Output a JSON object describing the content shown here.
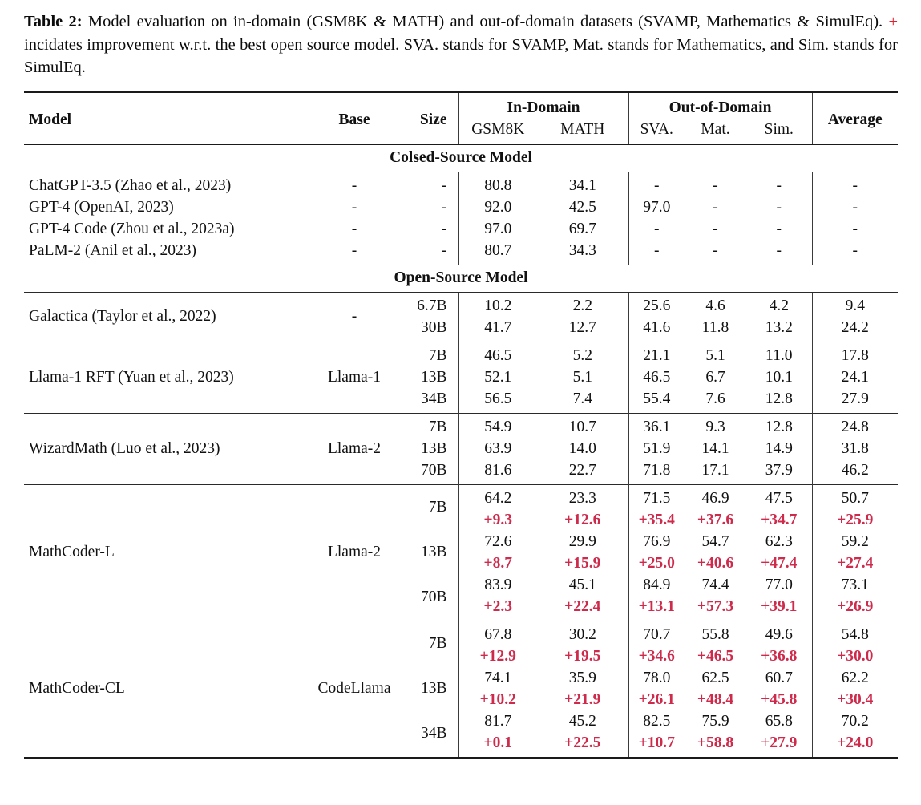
{
  "caption": {
    "label": "Table 2:",
    "text_before_plus": "Model evaluation on in-domain (GSM8K & MATH) and out-of-domain datasets (SVAMP, Mathematics & SimulEq).",
    "plus_sign": "+",
    "text_after_plus": "incidates improvement w.r.t. the best open source model. SVA. stands for SVAMP, Mat. stands for Mathematics, and Sim. stands for SimulEq."
  },
  "colors": {
    "improvement_red": "#ce2a4c",
    "caption_plus_red": "#e0202e",
    "rule_black": "#1a1a1a"
  },
  "header": {
    "model": "Model",
    "base": "Base",
    "size": "Size",
    "in_domain": "In-Domain",
    "out_of_domain": "Out-of-Domain",
    "average": "Average",
    "gsm8k": "GSM8K",
    "math": "MATH",
    "sva": "SVA.",
    "mat": "Mat.",
    "sim": "Sim."
  },
  "sections": {
    "closed": "Colsed-Source Model",
    "open": "Open-Source Model"
  },
  "closed_rows": [
    {
      "model": "ChatGPT-3.5 (Zhao et al., 2023)",
      "base": "-",
      "size": "-",
      "gsm8k": "80.8",
      "math": "34.1",
      "sva": "-",
      "mat": "-",
      "sim": "-",
      "avg": "-"
    },
    {
      "model": "GPT-4 (OpenAI, 2023)",
      "base": "-",
      "size": "-",
      "gsm8k": "92.0",
      "math": "42.5",
      "sva": "97.0",
      "mat": "-",
      "sim": "-",
      "avg": "-"
    },
    {
      "model": "GPT-4 Code (Zhou et al., 2023a)",
      "base": "-",
      "size": "-",
      "gsm8k": "97.0",
      "math": "69.7",
      "sva": "-",
      "mat": "-",
      "sim": "-",
      "avg": "-"
    },
    {
      "model": "PaLM-2 (Anil et al., 2023)",
      "base": "-",
      "size": "-",
      "gsm8k": "80.7",
      "math": "34.3",
      "sva": "-",
      "mat": "-",
      "sim": "-",
      "avg": "-"
    }
  ],
  "groups": [
    {
      "model": "Galactica (Taylor et al., 2022)",
      "base": "-",
      "rows": [
        {
          "size": "6.7B",
          "gsm8k": "10.2",
          "math": "2.2",
          "sva": "25.6",
          "mat": "4.6",
          "sim": "4.2",
          "avg": "9.4"
        },
        {
          "size": "30B",
          "gsm8k": "41.7",
          "math": "12.7",
          "sva": "41.6",
          "mat": "11.8",
          "sim": "13.2",
          "avg": "24.2"
        }
      ]
    },
    {
      "model": "Llama-1 RFT (Yuan et al., 2023)",
      "base": "Llama-1",
      "rows": [
        {
          "size": "7B",
          "gsm8k": "46.5",
          "math": "5.2",
          "sva": "21.1",
          "mat": "5.1",
          "sim": "11.0",
          "avg": "17.8"
        },
        {
          "size": "13B",
          "gsm8k": "52.1",
          "math": "5.1",
          "sva": "46.5",
          "mat": "6.7",
          "sim": "10.1",
          "avg": "24.1"
        },
        {
          "size": "34B",
          "gsm8k": "56.5",
          "math": "7.4",
          "sva": "55.4",
          "mat": "7.6",
          "sim": "12.8",
          "avg": "27.9"
        }
      ]
    },
    {
      "model": "WizardMath (Luo et al., 2023)",
      "base": "Llama-2",
      "rows": [
        {
          "size": "7B",
          "gsm8k": "54.9",
          "math": "10.7",
          "sva": "36.1",
          "mat": "9.3",
          "sim": "12.8",
          "avg": "24.8"
        },
        {
          "size": "13B",
          "gsm8k": "63.9",
          "math": "14.0",
          "sva": "51.9",
          "mat": "14.1",
          "sim": "14.9",
          "avg": "31.8"
        },
        {
          "size": "70B",
          "gsm8k": "81.6",
          "math": "22.7",
          "sva": "71.8",
          "mat": "17.1",
          "sim": "37.9",
          "avg": "46.2"
        }
      ]
    }
  ],
  "mathcoder_groups": [
    {
      "model": "MathCoder-L",
      "base": "Llama-2",
      "rows": [
        {
          "size": "7B",
          "scores": {
            "gsm8k": "64.2",
            "math": "23.3",
            "sva": "71.5",
            "mat": "46.9",
            "sim": "47.5",
            "avg": "50.7"
          },
          "delta": {
            "gsm8k": "+9.3",
            "math": "+12.6",
            "sva": "+35.4",
            "mat": "+37.6",
            "sim": "+34.7",
            "avg": "+25.9"
          }
        },
        {
          "size": "13B",
          "scores": {
            "gsm8k": "72.6",
            "math": "29.9",
            "sva": "76.9",
            "mat": "54.7",
            "sim": "62.3",
            "avg": "59.2"
          },
          "delta": {
            "gsm8k": "+8.7",
            "math": "+15.9",
            "sva": "+25.0",
            "mat": "+40.6",
            "sim": "+47.4",
            "avg": "+27.4"
          }
        },
        {
          "size": "70B",
          "scores": {
            "gsm8k": "83.9",
            "math": "45.1",
            "sva": "84.9",
            "mat": "74.4",
            "sim": "77.0",
            "avg": "73.1"
          },
          "delta": {
            "gsm8k": "+2.3",
            "math": "+22.4",
            "sva": "+13.1",
            "mat": "+57.3",
            "sim": "+39.1",
            "avg": "+26.9"
          }
        }
      ]
    },
    {
      "model": "MathCoder-CL",
      "base": "CodeLlama",
      "rows": [
        {
          "size": "7B",
          "scores": {
            "gsm8k": "67.8",
            "math": "30.2",
            "sva": "70.7",
            "mat": "55.8",
            "sim": "49.6",
            "avg": "54.8"
          },
          "delta": {
            "gsm8k": "+12.9",
            "math": "+19.5",
            "sva": "+34.6",
            "mat": "+46.5",
            "sim": "+36.8",
            "avg": "+30.0"
          }
        },
        {
          "size": "13B",
          "scores": {
            "gsm8k": "74.1",
            "math": "35.9",
            "sva": "78.0",
            "mat": "62.5",
            "sim": "60.7",
            "avg": "62.2"
          },
          "delta": {
            "gsm8k": "+10.2",
            "math": "+21.9",
            "sva": "+26.1",
            "mat": "+48.4",
            "sim": "+45.8",
            "avg": "+30.4"
          }
        },
        {
          "size": "34B",
          "scores": {
            "gsm8k": "81.7",
            "math": "45.2",
            "sva": "82.5",
            "mat": "75.9",
            "sim": "65.8",
            "avg": "70.2"
          },
          "delta": {
            "gsm8k": "+0.1",
            "math": "+22.5",
            "sva": "+10.7",
            "mat": "+58.8",
            "sim": "+27.9",
            "avg": "+24.0"
          }
        }
      ]
    }
  ]
}
